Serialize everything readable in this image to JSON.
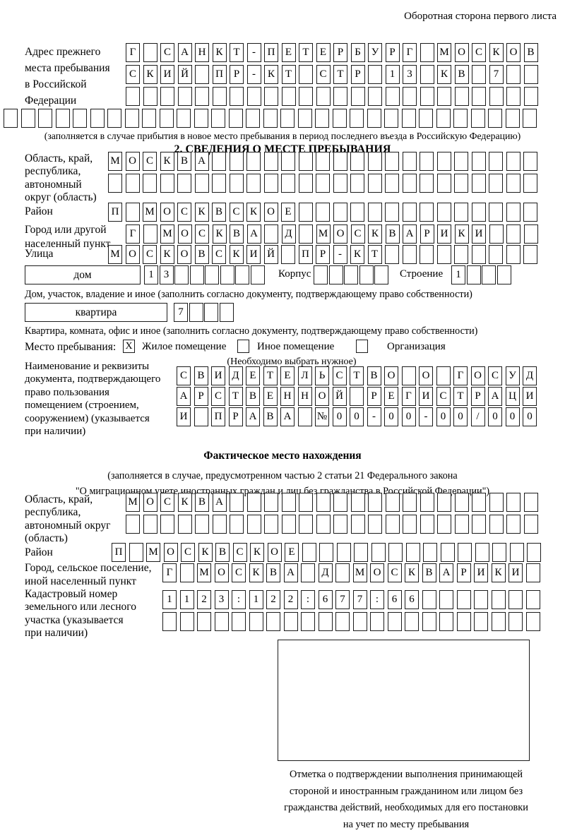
{
  "header": {
    "note": "Оборотная сторона первого листа"
  },
  "prev_address": {
    "label_lines": [
      "Адрес прежнего",
      "места пребывания",
      "в Российской",
      "Федерации"
    ],
    "row1": {
      "text": "Г САНКТ-ПЕТЕРБУРГ МОСКОВ",
      "length": 24
    },
    "row2": {
      "text": "СКИЙ ПР-КТ СТР 13 КВ 7",
      "length": 24
    },
    "row3": {
      "text": "",
      "length": 24
    },
    "row4": {
      "text": "",
      "length": 31
    },
    "note": "(заполняется в случае прибытия в новое место пребывания в период последнего въезда в Российскую Федерацию)"
  },
  "section2": {
    "title": "2. СВЕДЕНИЯ О МЕСТЕ ПРЕБЫВАНИЯ",
    "region": {
      "label_lines": [
        "Область, край,",
        "республика,",
        "автономный",
        "округ (область)"
      ],
      "row1": {
        "text": "МОСКВА",
        "length": 25
      },
      "row2": {
        "text": "",
        "length": 25
      }
    },
    "district": {
      "label": "Район",
      "row": {
        "text": "П МОСКВСКОЕ",
        "length": 25
      }
    },
    "city": {
      "label_lines": [
        "Город или другой",
        "населенный пункт"
      ],
      "row": {
        "text": "Г МОСКВА Д МОСКВАРИКИ",
        "length": 24
      }
    },
    "street": {
      "label": "Улица",
      "row": {
        "text": "МОСКОВСКИЙ ПР-КТ",
        "length": 25
      }
    },
    "house": {
      "type_label": "дом",
      "number": {
        "text": "13",
        "length": 8
      },
      "korpus_label": "Корпус",
      "korpus": {
        "text": "",
        "length": 5
      },
      "stroenie_label": "Строение",
      "stroenie": {
        "text": "1",
        "length": 4
      },
      "note": "Дом, участок, владение и иное (заполнить согласно документу, подтверждающему право собственности)"
    },
    "apartment": {
      "type_label": "квартира",
      "number": {
        "text": "7",
        "length": 4
      },
      "note": "Квартира, комната, офис и иное (заполнить согласно документу, подтверждающему право собственности)"
    },
    "stay_type": {
      "label": "Место пребывания:",
      "options": [
        {
          "label": "Жилое помещение",
          "mark": "X"
        },
        {
          "label": "Иное помещение",
          "mark": ""
        },
        {
          "label": "Организация",
          "mark": ""
        }
      ],
      "note": "(Необходимо выбрать нужное)"
    },
    "document": {
      "label_lines": [
        "Наименование и реквизиты",
        "документа, подтверждающего",
        "право пользования",
        "помещением (строением,",
        "сооружением) (указывается",
        "при наличии)"
      ],
      "row1": {
        "text": "СВИДЕТЕЛЬСТВО О ГОСУД",
        "length": 21
      },
      "row2": {
        "text": "АРСТВЕННОЙ РЕГИСТРАЦИ",
        "length": 21
      },
      "row3": {
        "text": "И ПРАВА №00-00-00/000",
        "length": 21
      }
    }
  },
  "actual_location": {
    "title": "Фактическое место нахождения",
    "note_lines": [
      "(заполняется в случае, предусмотренном частью 2 статьи 21 Федерального закона",
      "\"О миграционном учете иностранных граждан и лиц без гражданства в Российской Федерации\")"
    ],
    "region": {
      "label_lines": [
        "Область, край,",
        "республика,",
        "автономный округ",
        "(область)"
      ],
      "row1": {
        "text": "МОСКВА",
        "length": 24
      },
      "row2": {
        "text": "",
        "length": 24
      }
    },
    "district": {
      "label": "Район",
      "row": {
        "text": "П МОСКВСКОЕ",
        "length": 25
      }
    },
    "city": {
      "label_lines": [
        "Город, сельское поселение,",
        "иной населенный пункт"
      ],
      "row": {
        "text": "Г МОСКВА Д МОСКВАРИКИ",
        "length": 22
      }
    },
    "cadastral": {
      "label_lines": [
        "Кадастровый номер",
        "земельного или лесного",
        "участка (указывается",
        "при наличии)"
      ],
      "row1": {
        "text": "1123:122:677:66",
        "length": 22
      },
      "row2": {
        "text": "",
        "length": 22
      }
    },
    "stamp_caption_lines": [
      "Отметка о подтверждении выполнения принимающей",
      "стороной и иностранным гражданином или лицом без",
      "гражданства действий, необходимых для его постановки",
      "на учет по месту пребывания"
    ]
  }
}
